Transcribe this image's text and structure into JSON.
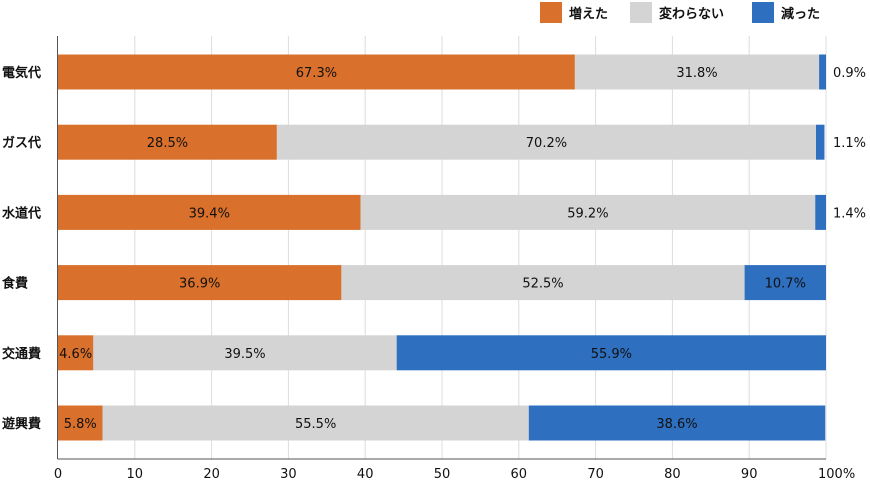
{
  "chart_data": {
    "type": "bar",
    "orientation": "horizontal",
    "stacked": true,
    "categories": [
      "電気代",
      "ガス代",
      "水道代",
      "食費",
      "交通費",
      "遊興費"
    ],
    "series": [
      {
        "name": "増えた",
        "color": "#D9702B",
        "values": [
          67.3,
          28.5,
          39.4,
          36.9,
          4.6,
          5.8
        ],
        "labels": [
          "67.3%",
          "28.5%",
          "39.4%",
          "36.9%",
          "4.6%",
          "5.8%"
        ]
      },
      {
        "name": "変わらない",
        "color": "#D4D4D4",
        "values": [
          31.8,
          70.2,
          59.2,
          52.5,
          39.5,
          55.5
        ],
        "labels": [
          "31.8%",
          "70.2%",
          "59.2%",
          "52.5%",
          "39.5%",
          "55.5%"
        ]
      },
      {
        "name": "減った",
        "color": "#2E6FBF",
        "values": [
          0.9,
          1.1,
          1.4,
          10.7,
          55.9,
          38.6
        ],
        "labels": [
          "0.9%",
          "1.1%",
          "1.4%",
          "10.7%",
          "55.9%",
          "38.6%"
        ]
      }
    ],
    "xlim": [
      0,
      100
    ],
    "xticks": [
      "0",
      "10",
      "20",
      "30",
      "40",
      "50",
      "60",
      "70",
      "80",
      "90",
      "100%"
    ],
    "grid": true,
    "legend": "top-right",
    "title": "",
    "xlabel": "",
    "ylabel": ""
  }
}
